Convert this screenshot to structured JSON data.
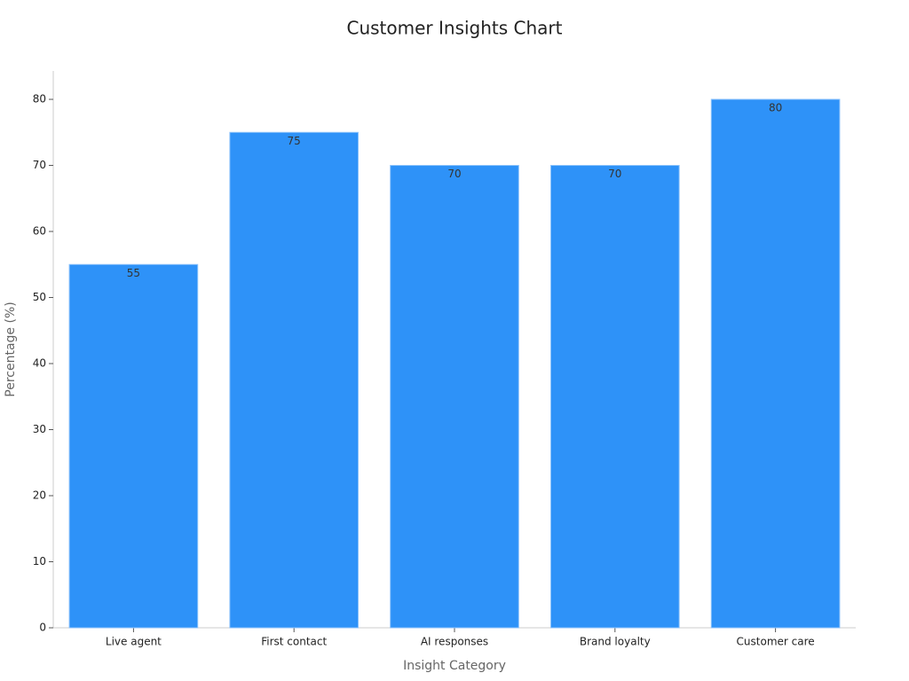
{
  "chart_data": {
    "type": "bar",
    "title": "Customer Insights Chart",
    "x_label": "Insight Category",
    "y_label": "Percentage (%)",
    "categories": [
      "Live agent",
      "First contact",
      "AI responses",
      "Brand loyalty",
      "Customer care"
    ],
    "values": [
      55,
      75,
      70,
      70,
      80
    ],
    "color": "#2e92f8",
    "ylim": [
      0,
      84.3
    ],
    "yticks": [
      0,
      10,
      20,
      30,
      40,
      50,
      60,
      70,
      80
    ],
    "grid": false
  }
}
